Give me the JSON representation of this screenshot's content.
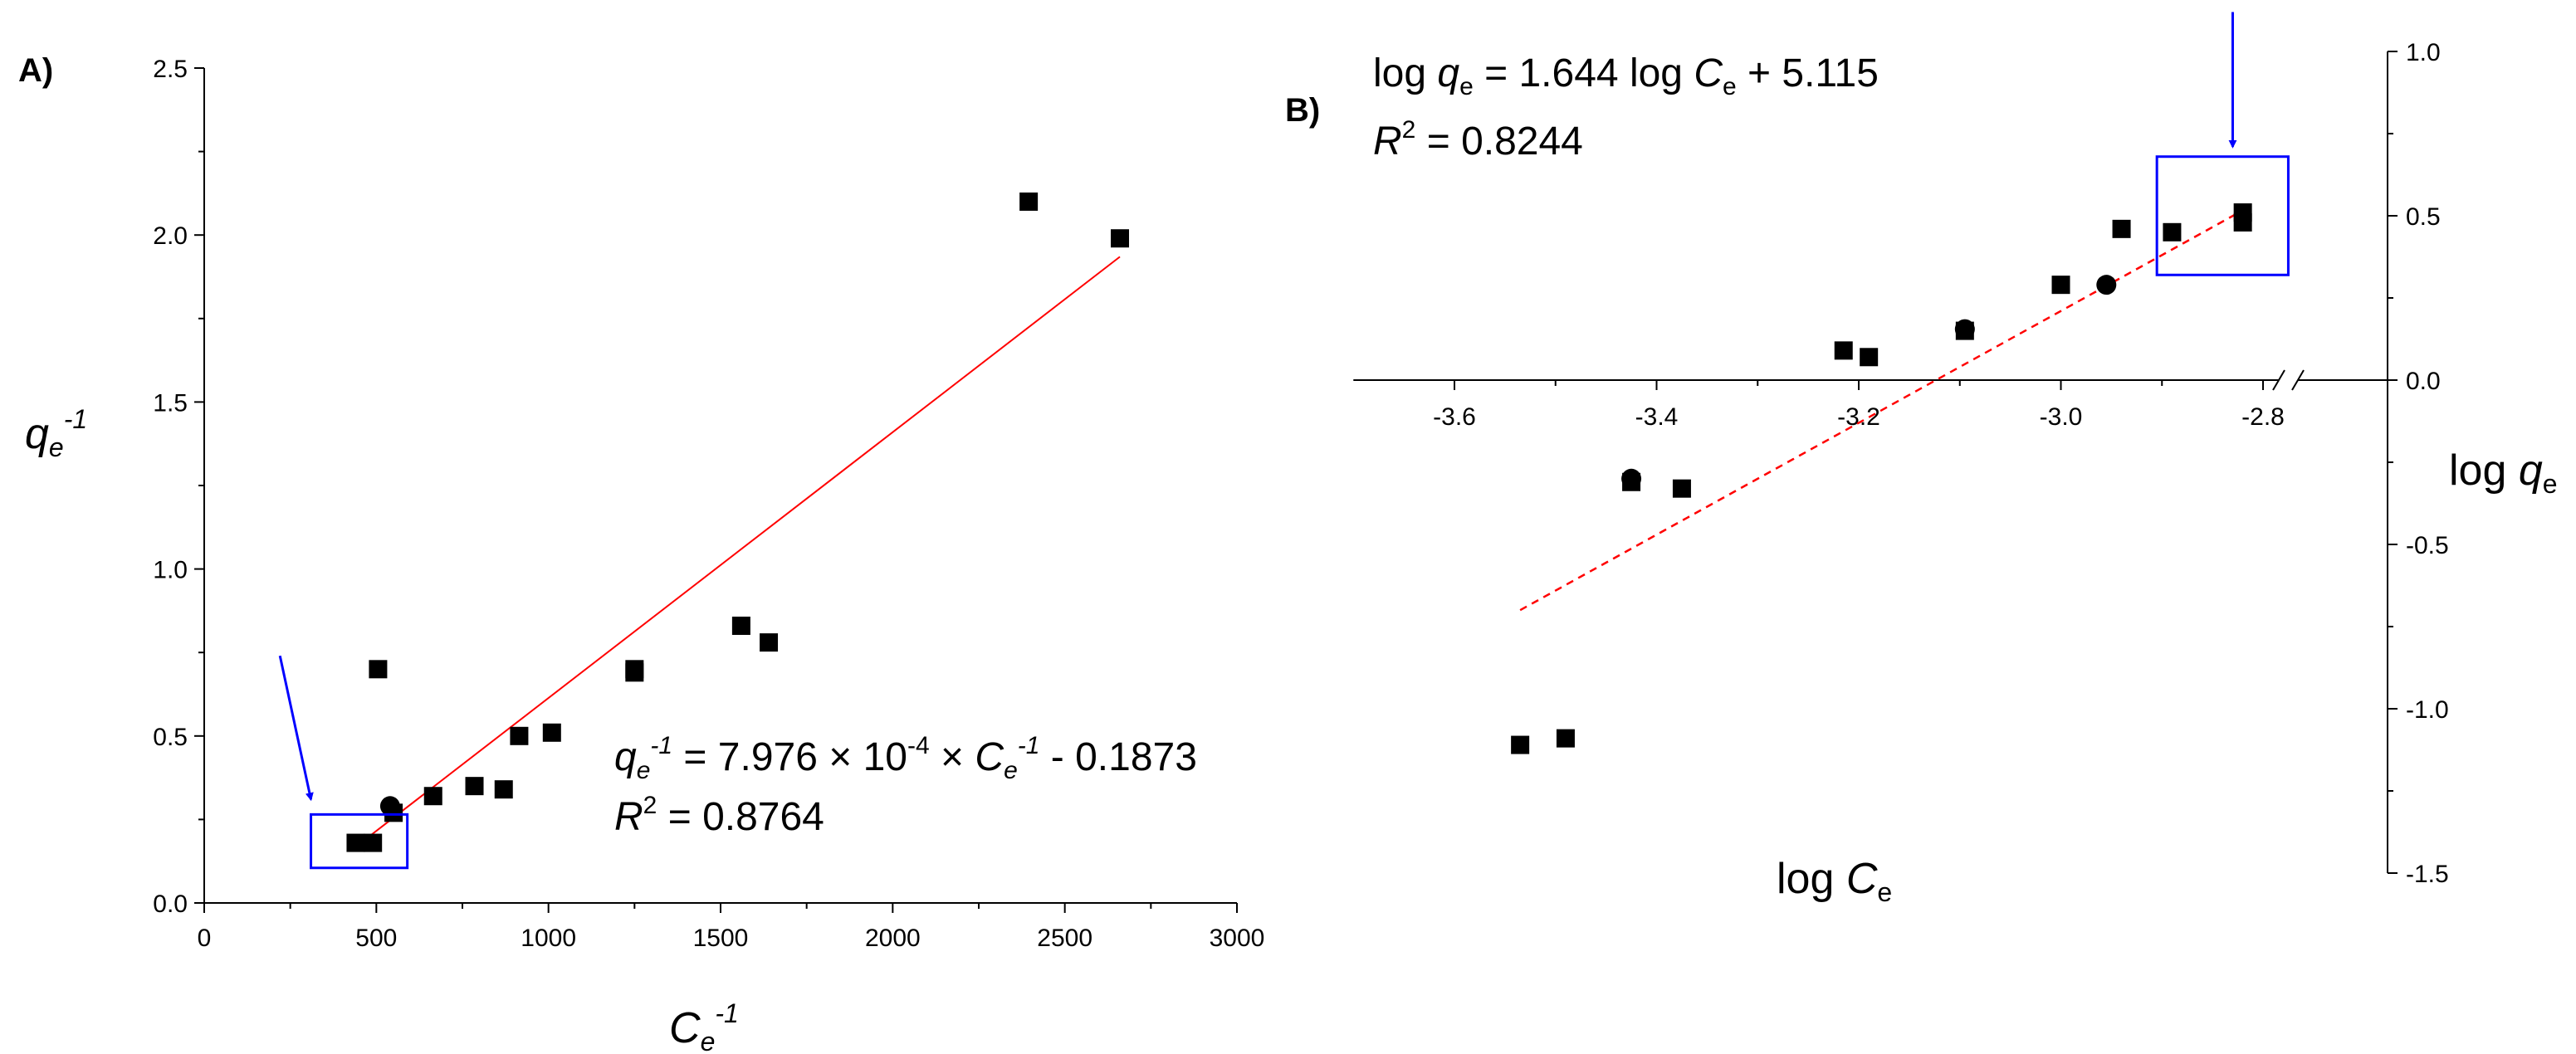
{
  "chart_data": [
    {
      "type": "scatter",
      "panel_label": "A)",
      "x_axis": {
        "ticks": [
          "0",
          "500",
          "1000",
          "1500",
          "2000",
          "2500",
          "3000"
        ],
        "xlim": [
          0,
          3000
        ]
      },
      "y_axis": {
        "ticks": [
          "0.0",
          "0.5",
          "1.0",
          "1.5",
          "2.0",
          "2.5"
        ],
        "ylim": [
          0,
          2.5
        ]
      },
      "xlabel": {
        "base": "C",
        "sub": "e",
        "sup": "-1"
      },
      "ylabel": {
        "base": "q",
        "sub": "e",
        "sup": "-1"
      },
      "equation": {
        "lhs_base": "q",
        "lhs_sub": "e",
        "lhs_sup": "-1",
        "middle": " = 7.976 × 10",
        "exp": "-4",
        "times": " × ",
        "rhs_base": "C",
        "rhs_sub": "e",
        "rhs_sup": "-1",
        "tail": " - 0.1873"
      },
      "r2": {
        "label": "R",
        "sup": "2",
        "value": " = 0.8764"
      },
      "fit": {
        "x": [
          440,
          2660
        ],
        "y": [
          0.168,
          1.935
        ],
        "color": "#ff0000",
        "style": "solid"
      },
      "squares": [
        [
          2395,
          2.1
        ],
        [
          2660,
          1.99
        ],
        [
          1560,
          0.83
        ],
        [
          1640,
          0.78
        ],
        [
          1250,
          0.7
        ],
        [
          1250,
          0.69
        ],
        [
          1010,
          0.51
        ],
        [
          915,
          0.5
        ],
        [
          870,
          0.34
        ],
        [
          785,
          0.35
        ],
        [
          665,
          0.32
        ],
        [
          550,
          0.27
        ],
        [
          505,
          0.7
        ],
        [
          490,
          0.18
        ],
        [
          440,
          0.18
        ]
      ],
      "circles": [
        [
          540,
          0.29
        ]
      ],
      "highlight": {
        "x": [
          310,
          590
        ],
        "y": [
          0.105,
          0.265
        ],
        "color": "#0000ff"
      },
      "arrow": {
        "from": [
          220,
          0.74
        ],
        "to": [
          310,
          0.31
        ],
        "color": "#0000ff"
      }
    },
    {
      "type": "scatter",
      "panel_label": "B)",
      "x_axis": {
        "ticks": [
          "-3.6",
          "-3.4",
          "-3.2",
          "-3.0",
          "-2.8"
        ],
        "xlim": [
          -3.7,
          -2.66
        ],
        "axis_break": true
      },
      "y_axis": {
        "ticks": [
          "1.0",
          "0.5",
          "0.0",
          "-0.5",
          "-1.0",
          "-1.5"
        ],
        "ylim": [
          -1.5,
          1.0
        ],
        "position": "right"
      },
      "xlabel": {
        "base": "log ",
        "var": "C",
        "sub": "e"
      },
      "ylabel": {
        "base": "log ",
        "var": "q",
        "sub": "e"
      },
      "equation": {
        "p1": "log ",
        "v1": "q",
        "s1": "e",
        "p2": " = 1.644 log ",
        "v2": "C",
        "s2": "e",
        "p3": " + 5.115"
      },
      "r2": {
        "label": "R",
        "sup": "2",
        "value": " = 0.8244"
      },
      "fit": {
        "x": [
          -3.535,
          -2.815
        ],
        "y": [
          -0.7,
          0.525
        ],
        "color": "#ff0000",
        "style": "dashed"
      },
      "squares": [
        [
          -3.535,
          -1.11
        ],
        [
          -3.49,
          -1.09
        ],
        [
          -3.375,
          -0.33
        ],
        [
          -3.425,
          -0.31
        ],
        [
          -3.215,
          0.09
        ],
        [
          -3.19,
          0.07
        ],
        [
          -3.095,
          0.15
        ],
        [
          -3.0,
          0.29
        ],
        [
          -2.94,
          0.46
        ],
        [
          -2.89,
          0.45
        ],
        [
          -2.82,
          0.48
        ],
        [
          -2.82,
          0.51
        ]
      ],
      "circles": [
        [
          -3.425,
          -0.3
        ],
        [
          -3.095,
          0.155
        ],
        [
          -2.955,
          0.29
        ]
      ],
      "highlight": {
        "x": [
          -2.905,
          -2.775
        ],
        "y": [
          0.32,
          0.68
        ],
        "color": "#0000ff"
      },
      "arrow": {
        "from": [
          -2.83,
          1.12
        ],
        "to": [
          -2.83,
          0.71
        ],
        "color": "#0000ff"
      }
    }
  ]
}
